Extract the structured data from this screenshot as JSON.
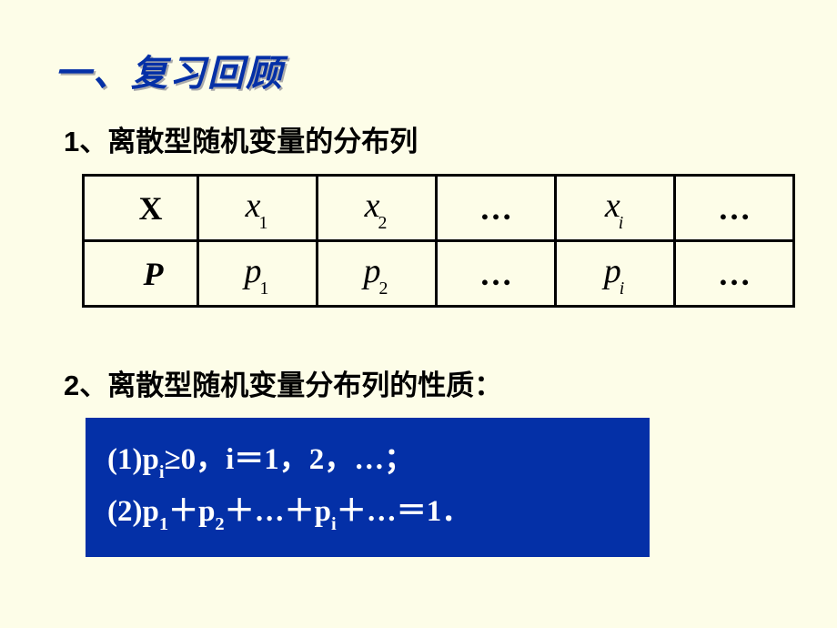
{
  "colors": {
    "background": "#fdfde8",
    "title": "#0430a7",
    "box_bg": "#0430a7",
    "box_text": "#ffffff",
    "text": "#000000",
    "table_border": "#000000"
  },
  "typography": {
    "title_fontsize": 40,
    "heading_fontsize": 31,
    "cell_fontsize": 36,
    "box_fontsize": 33
  },
  "title": "一、复习回顾",
  "section1": {
    "heading": "1、离散型随机变量的分布列",
    "table": {
      "row1_header": "X",
      "row2_header": "P",
      "x_base": "x",
      "p_base": "p",
      "sub1": "1",
      "sub2": "2",
      "sub_i": "i",
      "dots": "…"
    }
  },
  "section2": {
    "heading": "2、离散型随机变量分布列的性质：",
    "properties": {
      "line1_prefix": "(1)p",
      "line1_sub_i": "i",
      "line1_rest": "≥0，i＝1，2，…；",
      "line2_prefix": "(2)p",
      "line2_sub1": "1",
      "line2_plus": "＋",
      "line2_p": "p",
      "line2_sub2": "2",
      "line2_dots": "…",
      "line2_sub_i": "i",
      "line2_end": "＝1．"
    }
  }
}
